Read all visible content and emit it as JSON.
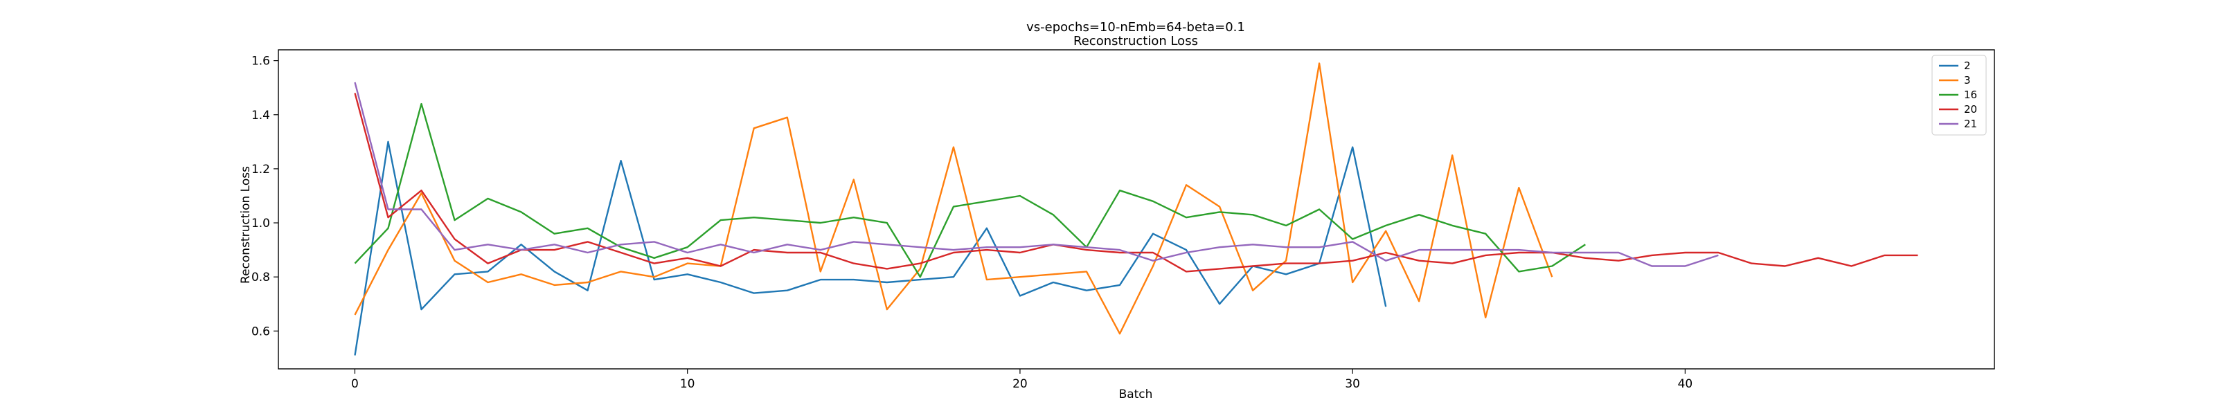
{
  "chart_data": {
    "type": "line",
    "title": "vs-epochs=10-nEmb=64-beta=0.1",
    "subtitle": "Reconstruction Loss",
    "xlabel": "Batch",
    "ylabel": "Reconstruction Loss",
    "xlim": [
      -2.3,
      49.3
    ],
    "ylim": [
      0.46,
      1.64
    ],
    "xticks": [
      0,
      10,
      20,
      30,
      40
    ],
    "yticks": [
      0.6,
      0.8,
      1.0,
      1.2,
      1.4,
      1.6
    ],
    "ytick_labels": [
      "0.6",
      "0.8",
      "1.0",
      "1.2",
      "1.4",
      "1.6"
    ],
    "grid": false,
    "legend_position": "top-right",
    "series": [
      {
        "name": "2",
        "color": "#1f77b4",
        "values": [
          0.51,
          1.3,
          0.68,
          0.81,
          0.82,
          0.92,
          0.82,
          0.75,
          1.23,
          0.79,
          0.81,
          0.78,
          0.74,
          0.75,
          0.79,
          0.79,
          0.78,
          0.79,
          0.8,
          0.98,
          0.73,
          0.78,
          0.75,
          0.77,
          0.96,
          0.9,
          0.7,
          0.84,
          0.81,
          0.85,
          1.28,
          0.69
        ]
      },
      {
        "name": "3",
        "color": "#ff7f0e",
        "values": [
          0.66,
          0.9,
          1.11,
          0.86,
          0.78,
          0.81,
          0.77,
          0.78,
          0.82,
          0.8,
          0.85,
          0.84,
          1.35,
          1.39,
          0.82,
          1.16,
          0.68,
          0.83,
          1.28,
          0.79,
          0.8,
          0.81,
          0.82,
          0.59,
          0.84,
          1.14,
          1.06,
          0.75,
          0.86,
          1.59,
          0.78,
          0.97,
          0.71,
          1.25,
          0.65,
          1.13,
          0.8
        ]
      },
      {
        "name": "16",
        "color": "#2ca02c",
        "values": [
          0.85,
          0.98,
          1.44,
          1.01,
          1.09,
          1.04,
          0.96,
          0.98,
          0.91,
          0.87,
          0.91,
          1.01,
          1.02,
          1.01,
          1.0,
          1.02,
          1.0,
          0.8,
          1.06,
          1.08,
          1.1,
          1.03,
          0.91,
          1.12,
          1.08,
          1.02,
          1.04,
          1.03,
          0.99,
          1.05,
          0.94,
          0.99,
          1.03,
          0.99,
          0.96,
          0.82,
          0.84,
          0.92
        ]
      },
      {
        "name": "20",
        "color": "#d62728",
        "values": [
          1.48,
          1.02,
          1.12,
          0.94,
          0.85,
          0.9,
          0.9,
          0.93,
          0.89,
          0.85,
          0.87,
          0.84,
          0.9,
          0.89,
          0.89,
          0.85,
          0.83,
          0.85,
          0.89,
          0.9,
          0.89,
          0.92,
          0.9,
          0.89,
          0.89,
          0.82,
          0.83,
          0.84,
          0.85,
          0.85,
          0.86,
          0.89,
          0.86,
          0.85,
          0.88,
          0.89,
          0.89,
          0.87,
          0.86,
          0.88,
          0.89,
          0.89,
          0.85,
          0.84,
          0.87,
          0.84,
          0.88,
          0.88
        ]
      },
      {
        "name": "21",
        "color": "#9467bd",
        "values": [
          1.52,
          1.05,
          1.05,
          0.9,
          0.92,
          0.9,
          0.92,
          0.89,
          0.92,
          0.93,
          0.89,
          0.92,
          0.89,
          0.92,
          0.9,
          0.93,
          0.92,
          0.91,
          0.9,
          0.91,
          0.91,
          0.92,
          0.91,
          0.9,
          0.86,
          0.89,
          0.91,
          0.92,
          0.91,
          0.91,
          0.93,
          0.86,
          0.9,
          0.9,
          0.9,
          0.9,
          0.89,
          0.89,
          0.89,
          0.84,
          0.84,
          0.88
        ]
      }
    ]
  }
}
